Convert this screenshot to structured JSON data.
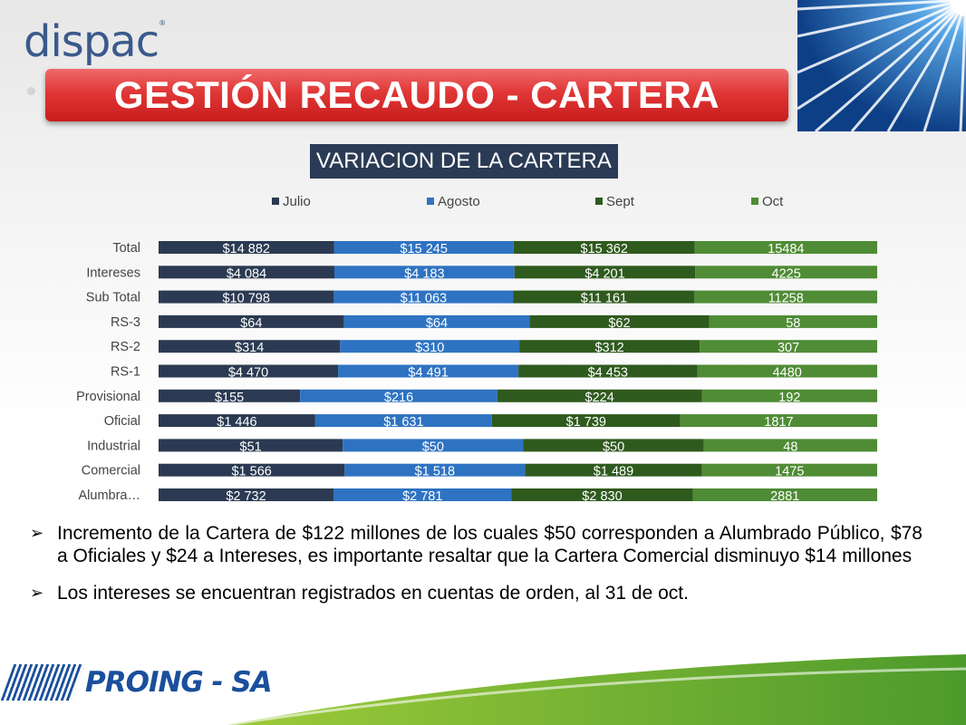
{
  "header": {
    "logo_text": "dispac",
    "title": "GESTIÓN RECAUDO - CARTERA"
  },
  "chart_data": {
    "type": "bar",
    "orientation": "horizontal",
    "stacked": "100%",
    "title": "VARIACION DE LA CARTERA",
    "legend_position": "top",
    "categories": [
      "Total",
      "Intereses",
      "Sub Total",
      "RS-3",
      "RS-2",
      "RS-1",
      "Provisional",
      "Oficial",
      "Industrial",
      "Comercial",
      "Alumbra…"
    ],
    "series": [
      {
        "name": "Julio",
        "color": "#2b3a52",
        "values": [
          14882,
          4084,
          10798,
          64,
          314,
          4470,
          155,
          1446,
          51,
          1566,
          2732
        ],
        "labels": [
          "$14 882",
          "$4 084",
          "$10 798",
          "$64",
          "$314",
          "$4 470",
          "$155",
          "$1 446",
          "$51",
          "$1 566",
          "$2 732"
        ]
      },
      {
        "name": "Agosto",
        "color": "#2e73c2",
        "values": [
          15245,
          4183,
          11063,
          64,
          310,
          4491,
          216,
          1631,
          50,
          1518,
          2781
        ],
        "labels": [
          "$15 245",
          "$4 183",
          "$11 063",
          "$64",
          "$310",
          "$4 491",
          "$216",
          "$1 631",
          "$50",
          "$1 518",
          "$2 781"
        ]
      },
      {
        "name": "Sept",
        "color": "#2f5a1e",
        "values": [
          15362,
          4201,
          11161,
          62,
          312,
          4453,
          224,
          1739,
          50,
          1489,
          2830
        ],
        "labels": [
          "$15 362",
          "$4 201",
          "$11 161",
          "$62",
          "$312",
          "$4 453",
          "$224",
          "$1 739",
          "$50",
          "$1 489",
          "$2 830"
        ]
      },
      {
        "name": "Oct",
        "color": "#4f8c35",
        "values": [
          15484,
          4225,
          11258,
          58,
          307,
          4480,
          192,
          1817,
          48,
          1475,
          2881
        ],
        "labels": [
          "15484",
          "4225",
          "11258",
          "58",
          "307",
          "4480",
          "192",
          "1817",
          "48",
          "1475",
          "2881"
        ]
      }
    ],
    "grid": false
  },
  "bullets": [
    "Incremento de la Cartera de $122 millones de los cuales $50  corresponden a Alumbrado Público, $78 a Oficiales y $24  a Intereses, es importante resaltar que la Cartera Comercial disminuyo $14 millones",
    "Los intereses se encuentran registrados en cuentas de orden, al 31 de oct."
  ],
  "footer": {
    "logo_text": "PROING - SA"
  },
  "colors": {
    "title_banner": "#e03636",
    "chart_title_bg": "#2a3b55",
    "corner_blue": "#1b5fa8"
  }
}
